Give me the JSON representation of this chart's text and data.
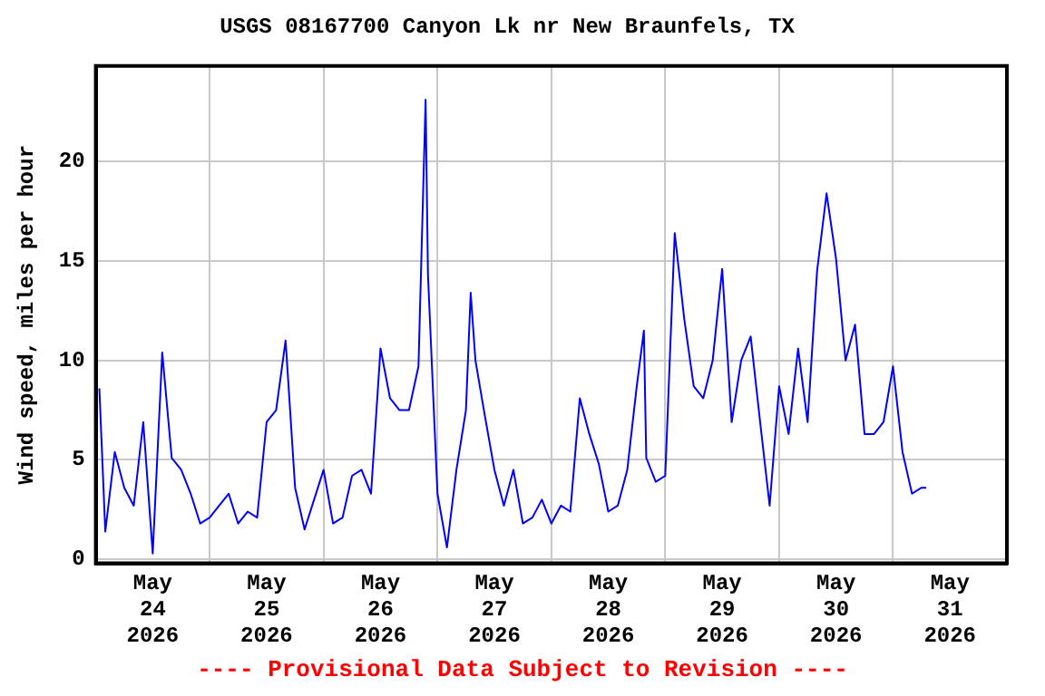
{
  "chart_data": {
    "type": "line",
    "title": "USGS 08167700 Canyon Lk nr New Braunfels, TX",
    "ylabel": "Wind speed, miles per hour",
    "annotations": [
      "---- Provisional Data Subject to Revision ----"
    ],
    "x": [
      "2026-05-24T00:45",
      "2026-05-24T02:00",
      "2026-05-24T04:00",
      "2026-05-24T06:00",
      "2026-05-24T08:00",
      "2026-05-24T10:00",
      "2026-05-24T12:00",
      "2026-05-24T14:00",
      "2026-05-24T16:00",
      "2026-05-24T18:00",
      "2026-05-24T20:00",
      "2026-05-24T22:00",
      "2026-05-25T00:00",
      "2026-05-25T02:00",
      "2026-05-25T04:00",
      "2026-05-25T06:00",
      "2026-05-25T08:00",
      "2026-05-25T10:00",
      "2026-05-25T12:00",
      "2026-05-25T14:00",
      "2026-05-25T16:00",
      "2026-05-25T18:00",
      "2026-05-25T20:00",
      "2026-05-25T22:00",
      "2026-05-26T00:00",
      "2026-05-26T02:00",
      "2026-05-26T04:00",
      "2026-05-26T06:00",
      "2026-05-26T08:00",
      "2026-05-26T10:00",
      "2026-05-26T12:00",
      "2026-05-26T14:00",
      "2026-05-26T16:00",
      "2026-05-26T18:00",
      "2026-05-26T20:00",
      "2026-05-26T21:30",
      "2026-05-26T22:00",
      "2026-05-27T00:00",
      "2026-05-27T02:00",
      "2026-05-27T04:00",
      "2026-05-27T06:00",
      "2026-05-27T07:00",
      "2026-05-27T08:00",
      "2026-05-27T10:00",
      "2026-05-27T12:00",
      "2026-05-27T14:00",
      "2026-05-27T16:00",
      "2026-05-27T18:00",
      "2026-05-27T20:00",
      "2026-05-27T22:00",
      "2026-05-28T00:00",
      "2026-05-28T02:00",
      "2026-05-28T04:00",
      "2026-05-28T06:00",
      "2026-05-28T08:00",
      "2026-05-28T10:00",
      "2026-05-28T12:00",
      "2026-05-28T14:00",
      "2026-05-28T16:00",
      "2026-05-28T18:00",
      "2026-05-28T19:30",
      "2026-05-28T20:00",
      "2026-05-28T22:00",
      "2026-05-29T00:00",
      "2026-05-29T02:00",
      "2026-05-29T04:00",
      "2026-05-29T06:00",
      "2026-05-29T08:00",
      "2026-05-29T10:00",
      "2026-05-29T12:00",
      "2026-05-29T14:00",
      "2026-05-29T16:00",
      "2026-05-29T18:00",
      "2026-05-29T20:00",
      "2026-05-29T22:00",
      "2026-05-30T00:00",
      "2026-05-30T02:00",
      "2026-05-30T04:00",
      "2026-05-30T06:00",
      "2026-05-30T08:00",
      "2026-05-30T10:00",
      "2026-05-30T12:00",
      "2026-05-30T14:00",
      "2026-05-30T16:00",
      "2026-05-30T18:00",
      "2026-05-30T20:00",
      "2026-05-30T22:00",
      "2026-05-31T00:00",
      "2026-05-31T02:00",
      "2026-05-31T04:00",
      "2026-05-31T06:00",
      "2026-05-31T07:00"
    ],
    "series": [
      {
        "color": "#0000ff",
        "values": [
          8.6,
          1.4,
          5.4,
          3.6,
          2.7,
          6.9,
          0.3,
          10.4,
          5.1,
          4.5,
          3.3,
          1.8,
          2.1,
          2.7,
          3.3,
          1.8,
          2.4,
          2.1,
          6.9,
          7.5,
          11.0,
          3.6,
          1.5,
          3.0,
          4.5,
          1.8,
          2.1,
          4.2,
          4.5,
          3.3,
          10.6,
          8.1,
          7.5,
          7.5,
          9.7,
          23.1,
          14.3,
          3.3,
          0.6,
          4.5,
          7.5,
          13.4,
          10.0,
          7.2,
          4.5,
          2.7,
          4.5,
          1.8,
          2.1,
          3.0,
          1.8,
          2.7,
          2.4,
          8.1,
          6.3,
          4.8,
          2.4,
          2.7,
          4.5,
          8.7,
          11.5,
          5.1,
          3.9,
          4.2,
          16.4,
          12.1,
          8.7,
          8.1,
          10.0,
          14.6,
          6.9,
          10.0,
          11.2,
          6.9,
          2.7,
          8.7,
          6.3,
          10.6,
          6.9,
          14.5,
          18.4,
          15.1,
          10.0,
          11.8,
          6.3,
          6.3,
          6.9,
          9.7,
          5.4,
          3.3,
          3.6,
          3.6
        ]
      }
    ],
    "xlim": [
      "2026-05-24T00:00",
      "2026-06-01T00:00"
    ],
    "xticks": [
      {
        "value": "2026-05-24T00:00",
        "label": null
      },
      {
        "value": "2026-05-24T12:00",
        "label": "May\n24\n2026"
      },
      {
        "value": "2026-05-25T00:00",
        "label": null
      },
      {
        "value": "2026-05-25T12:00",
        "label": "May\n25\n2026"
      },
      {
        "value": "2026-05-26T00:00",
        "label": null
      },
      {
        "value": "2026-05-26T12:00",
        "label": "May\n26\n2026"
      },
      {
        "value": "2026-05-27T00:00",
        "label": null
      },
      {
        "value": "2026-05-27T12:00",
        "label": "May\n27\n2026"
      },
      {
        "value": "2026-05-28T00:00",
        "label": null
      },
      {
        "value": "2026-05-28T12:00",
        "label": "May\n28\n2026"
      },
      {
        "value": "2026-05-29T00:00",
        "label": null
      },
      {
        "value": "2026-05-29T12:00",
        "label": "May\n29\n2026"
      },
      {
        "value": "2026-05-30T00:00",
        "label": null
      },
      {
        "value": "2026-05-30T12:00",
        "label": "May\n30\n2026"
      },
      {
        "value": "2026-05-31T00:00",
        "label": null
      },
      {
        "value": "2026-05-31T12:00",
        "label": "May\n31\n2026"
      },
      {
        "value": "2026-06-01T00:00",
        "label": null
      }
    ],
    "ylim": [
      -0.2,
      24.8
    ],
    "yticks": [
      0,
      5,
      10,
      15,
      20
    ],
    "grid": true,
    "legend": false,
    "marker": "none",
    "line_style": "solid"
  }
}
